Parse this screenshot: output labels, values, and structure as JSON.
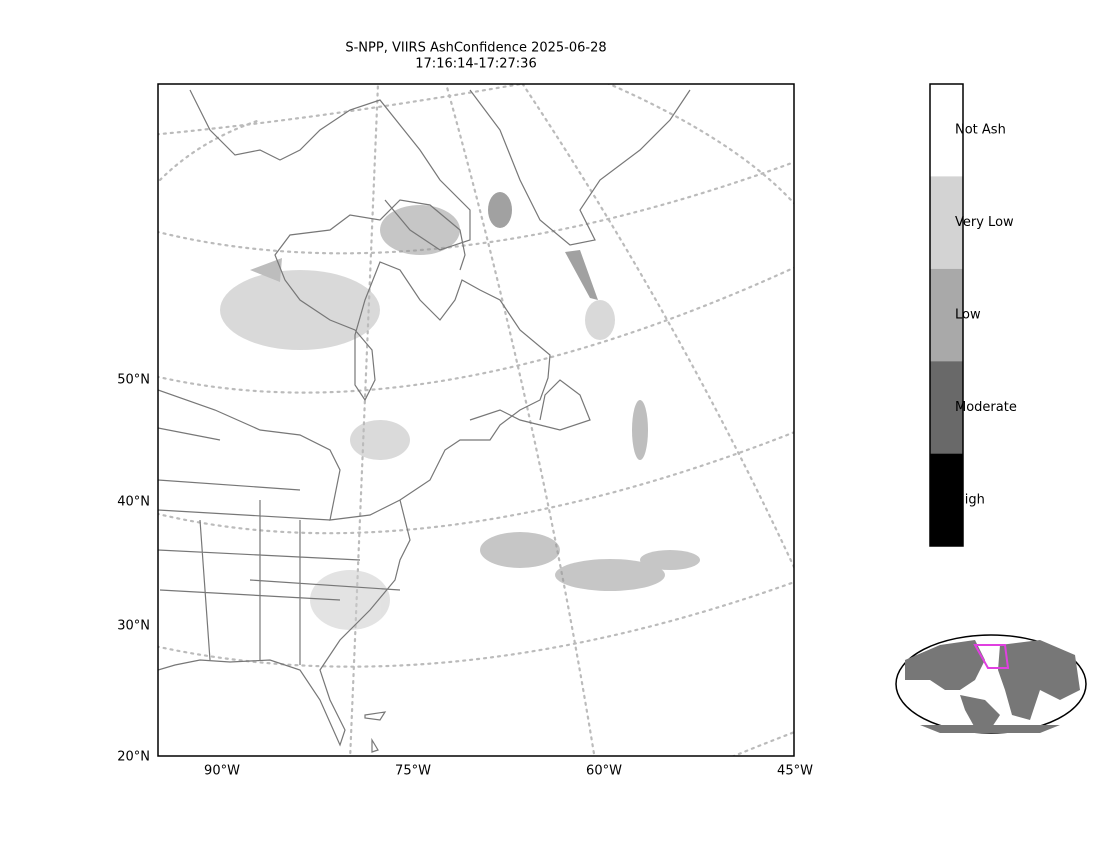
{
  "title": [
    "S-NPP, VIIRS AshConfidence 2025-06-28",
    "17:16:14-17:27:36"
  ],
  "lat_labels": [
    "50°N",
    "40°N",
    "30°N",
    "20°N"
  ],
  "lon_labels": [
    "90°W",
    "75°W",
    "60°W",
    "45°W"
  ],
  "colorbar": {
    "labels": [
      "Not Ash",
      "Very Low",
      "Low",
      "Moderate",
      "High"
    ],
    "colors": [
      "#ffffff",
      "#d3d3d3",
      "#a9a9a9",
      "#696969",
      "#000000"
    ]
  }
}
